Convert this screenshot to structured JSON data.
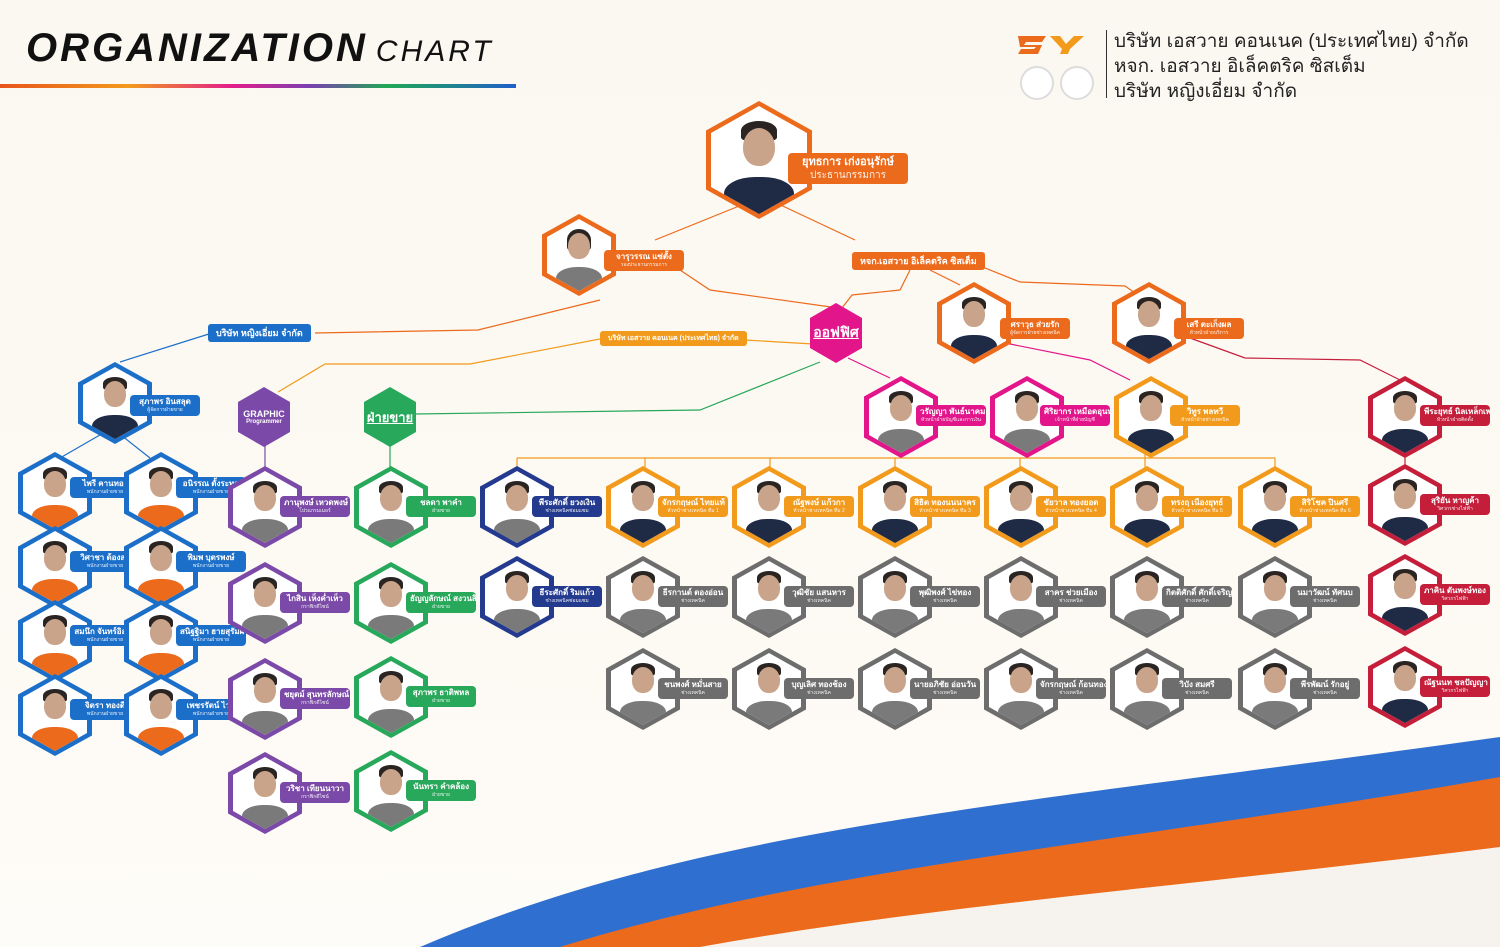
{
  "title": {
    "main": "ORGANIZATION",
    "sub": "CHART"
  },
  "companies": [
    "บริษัท เอสวาย คอนเนค (ประเทศไทย) จำกัด",
    "หจก. เอสวาย อิเล็คตริค ซิสเต็ม",
    "บริษัท หญิงเอี่ยม จำกัด"
  ],
  "branches": {
    "ying": "บริษัท หญิงเอี่ยม จำกัด",
    "connect": "บริษัท เอสวาย คอนเนค (ประเทศไทย) จำกัด",
    "electric": "หจก.เอสวาย อิเล็คตริค ซิสเต็ม"
  },
  "depts": {
    "office": "ออฟฟิศ",
    "graphic": "GRAPHIC",
    "graphic2": "Programmer",
    "sales": "ฝ่ายขาย"
  },
  "colors": {
    "orange": "#ec6a1c",
    "blue": "#1c6fc9",
    "amber": "#f29a1c",
    "pink": "#e2158a",
    "purple": "#7b4aa8",
    "green": "#27a85a",
    "navy": "#233a8f",
    "gray": "#6d6d6d",
    "red": "#c41e3a"
  },
  "people": {
    "ceo": {
      "name": "ยุทธการ เก่งอนุรักษ์",
      "role": "ประธานกรรมการ"
    },
    "vp": {
      "name": "จารุวรรณ แซ่ตั้ง",
      "role": "รองประธานกรรมการ"
    },
    "ying_head": {
      "name": "สุภาพร อินสลุด",
      "role": "ผู้จัดการฝ่ายขาย"
    },
    "e1": {
      "name": "ศราวุธ ส่วยรัก",
      "role": "ผู้จัดการฝ่ายช่างเทคนิค"
    },
    "e2": {
      "name": "เสรี ตะเก็งผล",
      "role": "หัวหน้าฝ่ายบริการ"
    },
    "o1": {
      "name": "วรัญญา พันธ์นาคม",
      "role": "หัวหน้าฝ่ายบัญชีและการเงิน"
    },
    "o2": {
      "name": "ศิริยากร เหมือดอุนทด",
      "role": "เจ้าหน้าที่ฝ่ายบัญชี"
    },
    "o3": {
      "name": "วิทูร พลทวี",
      "role": "หัวหน้าฝ่ายช่างเทคนิค"
    },
    "r1": {
      "name": "พีระยุทธ์ นิลเหล็กเพชร",
      "role": "หัวหน้าฝ่ายติดตั้ง"
    },
    "r2": {
      "name": "สุริยัน หาญค้า",
      "role": "วิศวกรช่างไฟฟ้า"
    },
    "r3": {
      "name": "ภาคิน ตันพงษ์ทอง",
      "role": "วิศวกรไฟฟ้า"
    },
    "r4": {
      "name": "ณัฐนนท ชลปัญญา",
      "role": "วิศวกรไฟฟ้า"
    },
    "y1": {
      "name": "ไพรี คานทอง",
      "role": "พนักงานฝ่ายขาย"
    },
    "y2": {
      "name": "อนิรรณ ตั้งระทูล",
      "role": "พนักงานฝ่ายขาย"
    },
    "y3": {
      "name": "วิศาชา ต้องสา",
      "role": "พนักงานฝ่ายขาย"
    },
    "y4": {
      "name": "พิมพ บุตรพงษ์",
      "role": "พนักงานฝ่ายขาย"
    },
    "y5": {
      "name": "สมนึก จันทร์อิสรกี",
      "role": "พนักงานฝ่ายขาย"
    },
    "y6": {
      "name": "สนิฐฐิมา ฮายสุรัมผ",
      "role": "พนักงานฝ่ายขาย"
    },
    "y7": {
      "name": "จิตรา ทองดี",
      "role": "พนักงานฝ่ายขาย"
    },
    "y8": {
      "name": "เพชรรัตน์ ไวดี",
      "role": "พนักงานฝ่ายขาย"
    },
    "g1": {
      "name": "ภานุพงษ์ เหวดพงษ์",
      "role": "โปรแกรมเมอร์"
    },
    "g2": {
      "name": "ไกสิน เห็งค่ำเห็ว",
      "role": "กราฟิกดีไซน์"
    },
    "g3": {
      "name": "ชยุตม์ สุนทรลักษณ์",
      "role": "กราฟิกดีไซน์"
    },
    "g4": {
      "name": "วริชา เทียนนาวา",
      "role": "กราฟิกดีไซน์"
    },
    "s1": {
      "name": "ชลดา พาคำ",
      "role": "ฝ่ายขาย"
    },
    "s2": {
      "name": "ธัญญลักษณ์ สงวนสิน",
      "role": "ฝ่ายขาย"
    },
    "s3": {
      "name": "สุภาพร ธาติพหล",
      "role": "ฝ่ายขาย"
    },
    "s4": {
      "name": "นันทรา คำคล้อง",
      "role": "ฝ่ายขาย"
    },
    "n1": {
      "name": "พีระศักดิ์ ยวงเงิน",
      "role": "ช่างเทคนิคซ่อมแซม"
    },
    "n2": {
      "name": "ธีระศักดิ์ ริมแก้ว",
      "role": "ช่างเทคนิคซ่อมแซม"
    },
    "t1": {
      "name": "จักรกฤษณ์ ไทยแท้",
      "role": "หัวหน้าช่างเทคนิค ทีม 1"
    },
    "t2": {
      "name": "ณัฐพงษ์ แก้วกา",
      "role": "หัวหน้าช่างเทคนิค ทีม 2"
    },
    "t3": {
      "name": "สิธิต ทองนนนาคร",
      "role": "หัวหน้าช่างเทคนิค ทีม 3"
    },
    "t4": {
      "name": "ชัยวาล ทองยอด",
      "role": "หัวหน้าช่างเทคนิค ทีม 4"
    },
    "t5": {
      "name": "ทรงฤ เนืองยุทธ์",
      "role": "หัวหน้าช่างเทคนิค ทีม 5"
    },
    "t6": {
      "name": "สิริโชค ปินศรี",
      "role": "หัวหน้าช่างเทคนิค ทีม 6"
    },
    "a1": {
      "name": "ธีรกานต์ ตองอ่อน",
      "role": "ช่างเทคนิค"
    },
    "a2": {
      "name": "วุฒิชัย แสนหาร",
      "role": "ช่างเทคนิค"
    },
    "a3": {
      "name": "พุฒิพงศ์ ไข่ทอง",
      "role": "ช่างเทคนิค"
    },
    "a4": {
      "name": "สาคร ช่วยเมือง",
      "role": "ช่างเทคนิค"
    },
    "a5": {
      "name": "กิตติศักดิ์ ศักดิ์เจริญพัฒกุล",
      "role": "ช่างเทคนิค"
    },
    "a6": {
      "name": "นมาวัฒน์ ทัศนบ",
      "role": "ช่างเทคนิค"
    },
    "b1": {
      "name": "ชนพงศ์ หมั่นสาย",
      "role": "ช่างเทคนิค"
    },
    "b2": {
      "name": "บุญเลิศ ทองช้อง",
      "role": "ช่างเทคนิค"
    },
    "b3": {
      "name": "นายอภิชัย อ่อนวัน",
      "role": "ช่างเทคนิค"
    },
    "b4": {
      "name": "จักรกฤษณ์ ก้อนทองมา",
      "role": "ช่างเทคนิค"
    },
    "b5": {
      "name": "วิบัง สมศรี",
      "role": "ช่างเทคนิค"
    },
    "b6": {
      "name": "พีรพัฒน์ รักอยู่",
      "role": "ช่างเทคนิค"
    }
  }
}
